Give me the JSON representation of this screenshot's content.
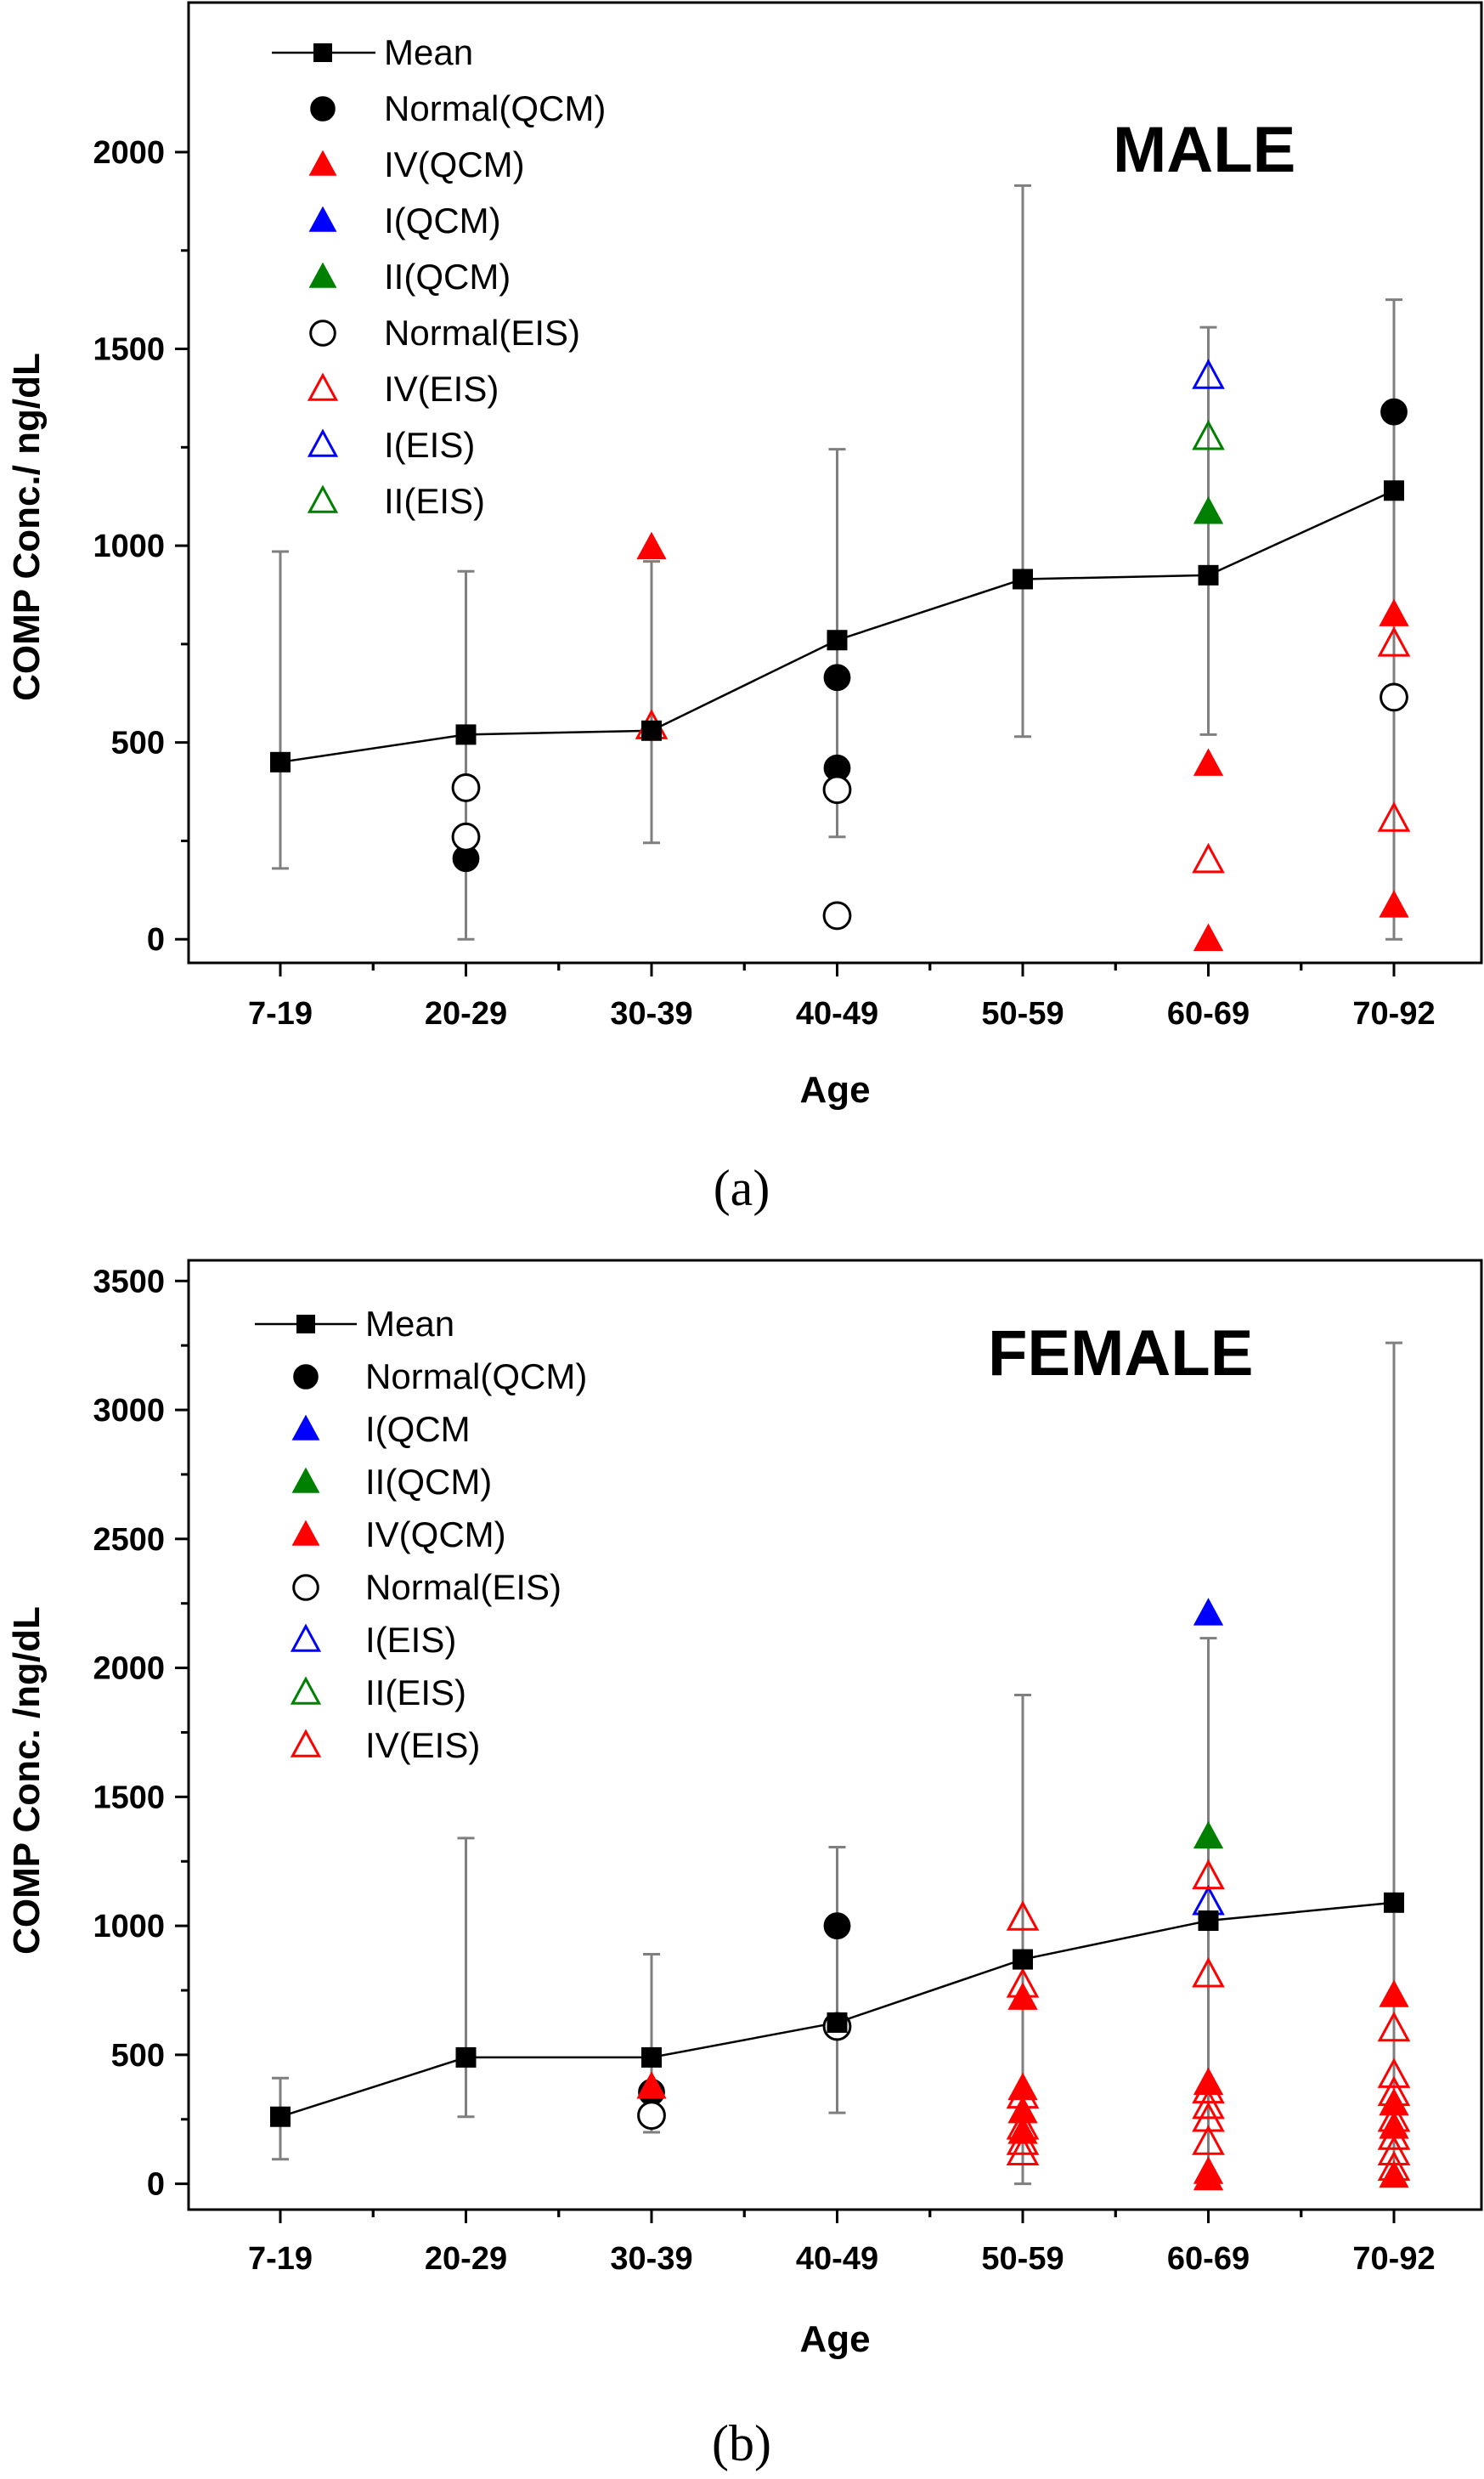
{
  "colors": {
    "normal": "#000000",
    "I": "#0000ff",
    "II": "#008000",
    "IV": "#ff0000",
    "errorbar": "#7f7f7f"
  },
  "chart_data": [
    {
      "type": "scatter",
      "title": "MALE",
      "panel_label": "(a)",
      "xlabel": "Age",
      "ylabel": "COMP Conc./ ng/dL",
      "categories": [
        "7-19",
        "20-29",
        "30-39",
        "40-49",
        "50-59",
        "60-69",
        "70-92"
      ],
      "ylim": [
        -60,
        2380
      ],
      "yticks": [
        0,
        500,
        1000,
        1500,
        2000
      ],
      "legend": [
        {
          "name": "Mean",
          "marker": "mean",
          "color": "#000000"
        },
        {
          "name": "Normal(QCM)",
          "marker": "circle-filled",
          "color": "#000000"
        },
        {
          "name": "IV(QCM)",
          "marker": "triangle-filled",
          "color": "#ff0000"
        },
        {
          "name": "I(QCM)",
          "marker": "triangle-filled",
          "color": "#0000ff"
        },
        {
          "name": "II(QCM)",
          "marker": "triangle-filled",
          "color": "#008000"
        },
        {
          "name": "Normal(EIS)",
          "marker": "circle-open",
          "color": "#000000"
        },
        {
          "name": "IV(EIS)",
          "marker": "triangle-open",
          "color": "#ff0000"
        },
        {
          "name": "I(EIS)",
          "marker": "triangle-open",
          "color": "#0000ff"
        },
        {
          "name": "II(EIS)",
          "marker": "triangle-open",
          "color": "#008000"
        }
      ],
      "mean": {
        "values": [
          450,
          520,
          530,
          760,
          915,
          925,
          1140
        ],
        "err_low": [
          180,
          0,
          245,
          260,
          515,
          520,
          0
        ],
        "err_high": [
          985,
          935,
          960,
          1245,
          1915,
          1555,
          1625
        ]
      },
      "series": [
        {
          "name": "Normal(QCM)",
          "marker": "circle-filled",
          "color": "#000000",
          "points": [
            [
              1,
              205
            ],
            [
              3,
              665
            ],
            [
              3,
              435
            ],
            [
              6,
              1340
            ]
          ]
        },
        {
          "name": "IV(QCM)",
          "marker": "triangle-filled",
          "color": "#ff0000",
          "points": [
            [
              2,
              995
            ],
            [
              5,
              445
            ],
            [
              5,
              0
            ],
            [
              6,
              825
            ],
            [
              6,
              85
            ]
          ]
        },
        {
          "name": "I(QCM)",
          "marker": "triangle-filled",
          "color": "#0000ff",
          "points": []
        },
        {
          "name": "II(QCM)",
          "marker": "triangle-filled",
          "color": "#008000",
          "points": [
            [
              5,
              1085
            ]
          ]
        },
        {
          "name": "Normal(EIS)",
          "marker": "circle-open",
          "color": "#000000",
          "points": [
            [
              1,
              385
            ],
            [
              1,
              260
            ],
            [
              3,
              380
            ],
            [
              3,
              60
            ],
            [
              6,
              615
            ]
          ]
        },
        {
          "name": "IV(EIS)",
          "marker": "triangle-open",
          "color": "#ff0000",
          "points": [
            [
              2,
              540
            ],
            [
              5,
              200
            ],
            [
              6,
              750
            ],
            [
              6,
              305
            ]
          ]
        },
        {
          "name": "I(EIS)",
          "marker": "triangle-open",
          "color": "#0000ff",
          "points": [
            [
              5,
              1430
            ]
          ]
        },
        {
          "name": "II(EIS)",
          "marker": "triangle-open",
          "color": "#008000",
          "points": [
            [
              5,
              1275
            ]
          ]
        }
      ]
    },
    {
      "type": "scatter",
      "title": "FEMALE",
      "panel_label": "(b)",
      "xlabel": "Age",
      "ylabel": "COMP Conc. /ng/dL",
      "categories": [
        "7-19",
        "20-29",
        "30-39",
        "40-49",
        "50-59",
        "60-69",
        "70-92"
      ],
      "ylim": [
        -100,
        3580
      ],
      "yticks": [
        0,
        500,
        1000,
        1500,
        2000,
        2500,
        3000,
        3500
      ],
      "legend": [
        {
          "name": "Mean",
          "marker": "mean",
          "color": "#000000"
        },
        {
          "name": "Normal(QCM)",
          "marker": "circle-filled",
          "color": "#000000"
        },
        {
          "name": "I(QCM",
          "marker": "triangle-filled",
          "color": "#0000ff"
        },
        {
          "name": "II(QCM)",
          "marker": "triangle-filled",
          "color": "#008000"
        },
        {
          "name": "IV(QCM)",
          "marker": "triangle-filled",
          "color": "#ff0000"
        },
        {
          "name": "Normal(EIS)",
          "marker": "circle-open",
          "color": "#000000"
        },
        {
          "name": "I(EIS)",
          "marker": "triangle-open",
          "color": "#0000ff"
        },
        {
          "name": "II(EIS)",
          "marker": "triangle-open",
          "color": "#008000"
        },
        {
          "name": "IV(EIS)",
          "marker": "triangle-open",
          "color": "#ff0000"
        }
      ],
      "mean": {
        "values": [
          260,
          490,
          490,
          625,
          870,
          1020,
          1090
        ],
        "err_low": [
          95,
          260,
          200,
          275,
          0,
          0,
          0
        ],
        "err_high": [
          410,
          1340,
          890,
          1305,
          1895,
          2115,
          3260
        ]
      },
      "series": [
        {
          "name": "Normal(QCM)",
          "marker": "circle-filled",
          "color": "#000000",
          "points": [
            [
              2,
              355
            ],
            [
              3,
              1000
            ]
          ]
        },
        {
          "name": "I(QCM",
          "marker": "triangle-filled",
          "color": "#0000ff",
          "points": [
            [
              5,
              2210
            ]
          ]
        },
        {
          "name": "II(QCM)",
          "marker": "triangle-filled",
          "color": "#008000",
          "points": [
            [
              5,
              1345
            ]
          ]
        },
        {
          "name": "IV(QCM)",
          "marker": "triangle-filled",
          "color": "#ff0000",
          "points": [
            [
              2,
              375
            ],
            [
              4,
              720
            ],
            [
              4,
              370
            ],
            [
              4,
              280
            ],
            [
              4,
              200
            ],
            [
              5,
              390
            ],
            [
              5,
              45
            ],
            [
              5,
              20
            ],
            [
              6,
              730
            ],
            [
              6,
              310
            ],
            [
              6,
              220
            ],
            [
              6,
              30
            ]
          ]
        },
        {
          "name": "Normal(EIS)",
          "marker": "circle-open",
          "color": "#000000",
          "points": [
            [
              2,
              265
            ],
            [
              3,
              610
            ]
          ]
        },
        {
          "name": "I(EIS)",
          "marker": "triangle-open",
          "color": "#0000ff",
          "points": [
            [
              5,
              1090
            ]
          ]
        },
        {
          "name": "II(EIS)",
          "marker": "triangle-open",
          "color": "#008000",
          "points": []
        },
        {
          "name": "IV(EIS)",
          "marker": "triangle-open",
          "color": "#ff0000",
          "points": [
            [
              4,
              1030
            ],
            [
              4,
              770
            ],
            [
              4,
              340
            ],
            [
              4,
              220
            ],
            [
              4,
              160
            ],
            [
              4,
              120
            ],
            [
              5,
              1190
            ],
            [
              5,
              810
            ],
            [
              5,
              360
            ],
            [
              5,
              300
            ],
            [
              5,
              250
            ],
            [
              5,
              160
            ],
            [
              6,
              600
            ],
            [
              6,
              420
            ],
            [
              6,
              350
            ],
            [
              6,
              250
            ],
            [
              6,
              180
            ],
            [
              6,
              120
            ],
            [
              6,
              60
            ]
          ]
        }
      ]
    }
  ]
}
